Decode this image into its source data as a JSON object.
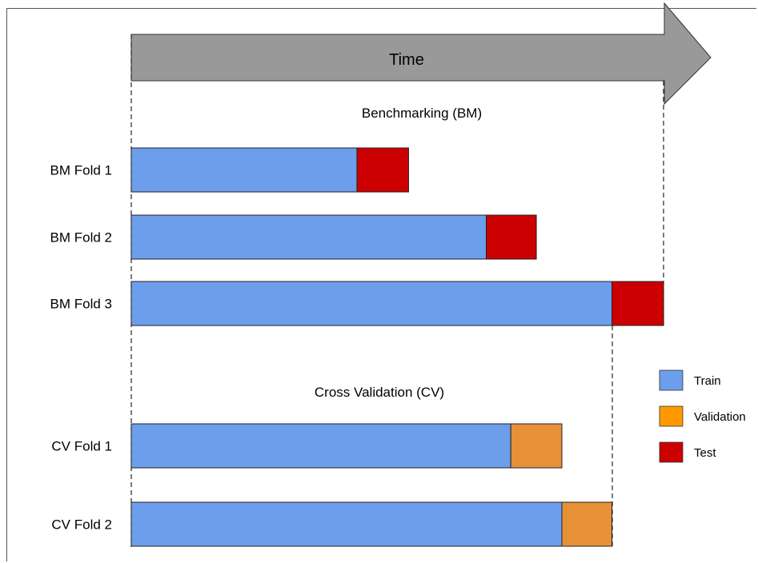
{
  "arrow": {
    "label": "Time"
  },
  "benchmark": {
    "title": "Benchmarking (BM)",
    "folds": [
      {
        "label": "BM Fold 1",
        "train_end": 0.424,
        "eval_end": 0.521,
        "eval_kind": "test"
      },
      {
        "label": "BM Fold 2",
        "train_end": 0.667,
        "eval_end": 0.761,
        "eval_kind": "test"
      },
      {
        "label": "BM Fold 3",
        "train_end": 0.903,
        "eval_end": 1.0,
        "eval_kind": "test"
      }
    ]
  },
  "cross_validation": {
    "title": "Cross Validation (CV)",
    "folds": [
      {
        "label": "CV Fold 1",
        "train_end": 0.713,
        "eval_end": 0.809,
        "eval_kind": "validation"
      },
      {
        "label": "CV Fold 2",
        "train_end": 0.809,
        "eval_end": 0.903,
        "eval_kind": "validation"
      }
    ]
  },
  "legend": {
    "items": [
      {
        "key": "train",
        "label": "Train",
        "color": "#6d9eeb"
      },
      {
        "key": "validation",
        "label": "Validation",
        "color": "#ff9900"
      },
      {
        "key": "test",
        "label": "Test",
        "color": "#cc0000"
      }
    ]
  },
  "colors": {
    "arrow": "#999999",
    "train": "#6d9eeb",
    "validation_bar": "#e69138",
    "test": "#cc0000"
  }
}
